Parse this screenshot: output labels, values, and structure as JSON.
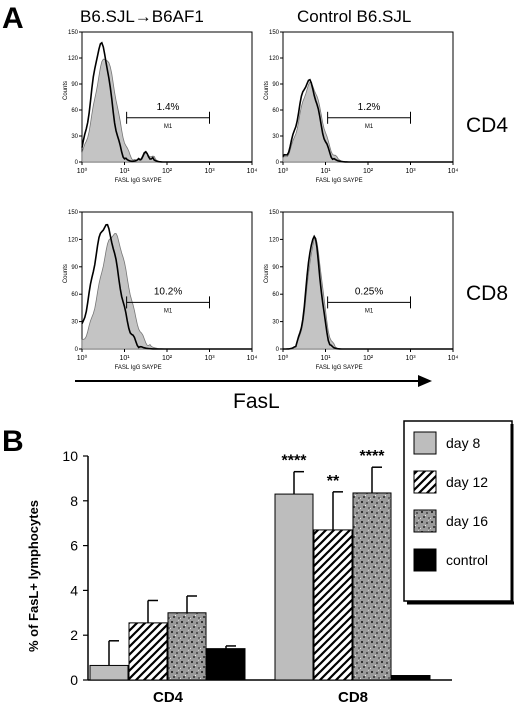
{
  "panel_a": {
    "letter": "A",
    "col_titles": [
      "B6.SJL→B6AF1",
      "Control B6.SJL"
    ],
    "row_labels": [
      "CD4",
      "CD8"
    ],
    "axis_label": "FasL",
    "hist_xlabel": "FASL IgG SAYPE",
    "hist_ylabel": "Counts",
    "gate_label": "M1",
    "xticks": [
      "10⁰",
      "10¹",
      "10²",
      "10³",
      "10⁴"
    ],
    "yticks": [
      "0",
      "30",
      "60",
      "90",
      "120",
      "150"
    ],
    "histograms": [
      {
        "name": "hist-cd4-b6sjl-b6af1",
        "percent": "1.4%",
        "shaded_peak": 0.8,
        "line_peak": 0.9
      },
      {
        "name": "hist-cd4-control",
        "percent": "1.2%",
        "shaded_peak": 0.6,
        "line_peak": 0.62
      },
      {
        "name": "hist-cd8-b6sjl-b6af1",
        "percent": "10.2%",
        "shaded_peak": 0.84,
        "line_peak": 0.9
      },
      {
        "name": "hist-cd8-control",
        "percent": "0.25%",
        "shaded_peak": 0.8,
        "line_peak": 0.82
      }
    ]
  },
  "panel_b": {
    "letter": "B",
    "chart_data": {
      "type": "bar",
      "categories": [
        "CD4",
        "CD8"
      ],
      "ylabel": "% of FasL+ lymphocytes",
      "ylim": [
        0,
        10
      ],
      "yticks": [
        0,
        2,
        4,
        6,
        8,
        10
      ],
      "legend_position": "top-right",
      "series": [
        {
          "name": "day 8",
          "values": [
            0.65,
            8.3
          ],
          "errors": [
            1.1,
            1.0
          ],
          "pattern": "gray"
        },
        {
          "name": "day 12",
          "values": [
            2.55,
            6.7
          ],
          "errors": [
            1.0,
            1.7
          ],
          "pattern": "hatch"
        },
        {
          "name": "day 16",
          "values": [
            3.0,
            8.35
          ],
          "errors": [
            0.75,
            1.15
          ],
          "pattern": "speckle"
        },
        {
          "name": "control",
          "values": [
            1.4,
            0.2
          ],
          "errors": [
            0.12,
            0.0
          ],
          "pattern": "black"
        }
      ],
      "annotations": [
        {
          "category": "CD8",
          "series": "day 8",
          "text": "****"
        },
        {
          "category": "CD8",
          "series": "day 12",
          "text": "**"
        },
        {
          "category": "CD8",
          "series": "day 16",
          "text": "****"
        }
      ]
    }
  }
}
